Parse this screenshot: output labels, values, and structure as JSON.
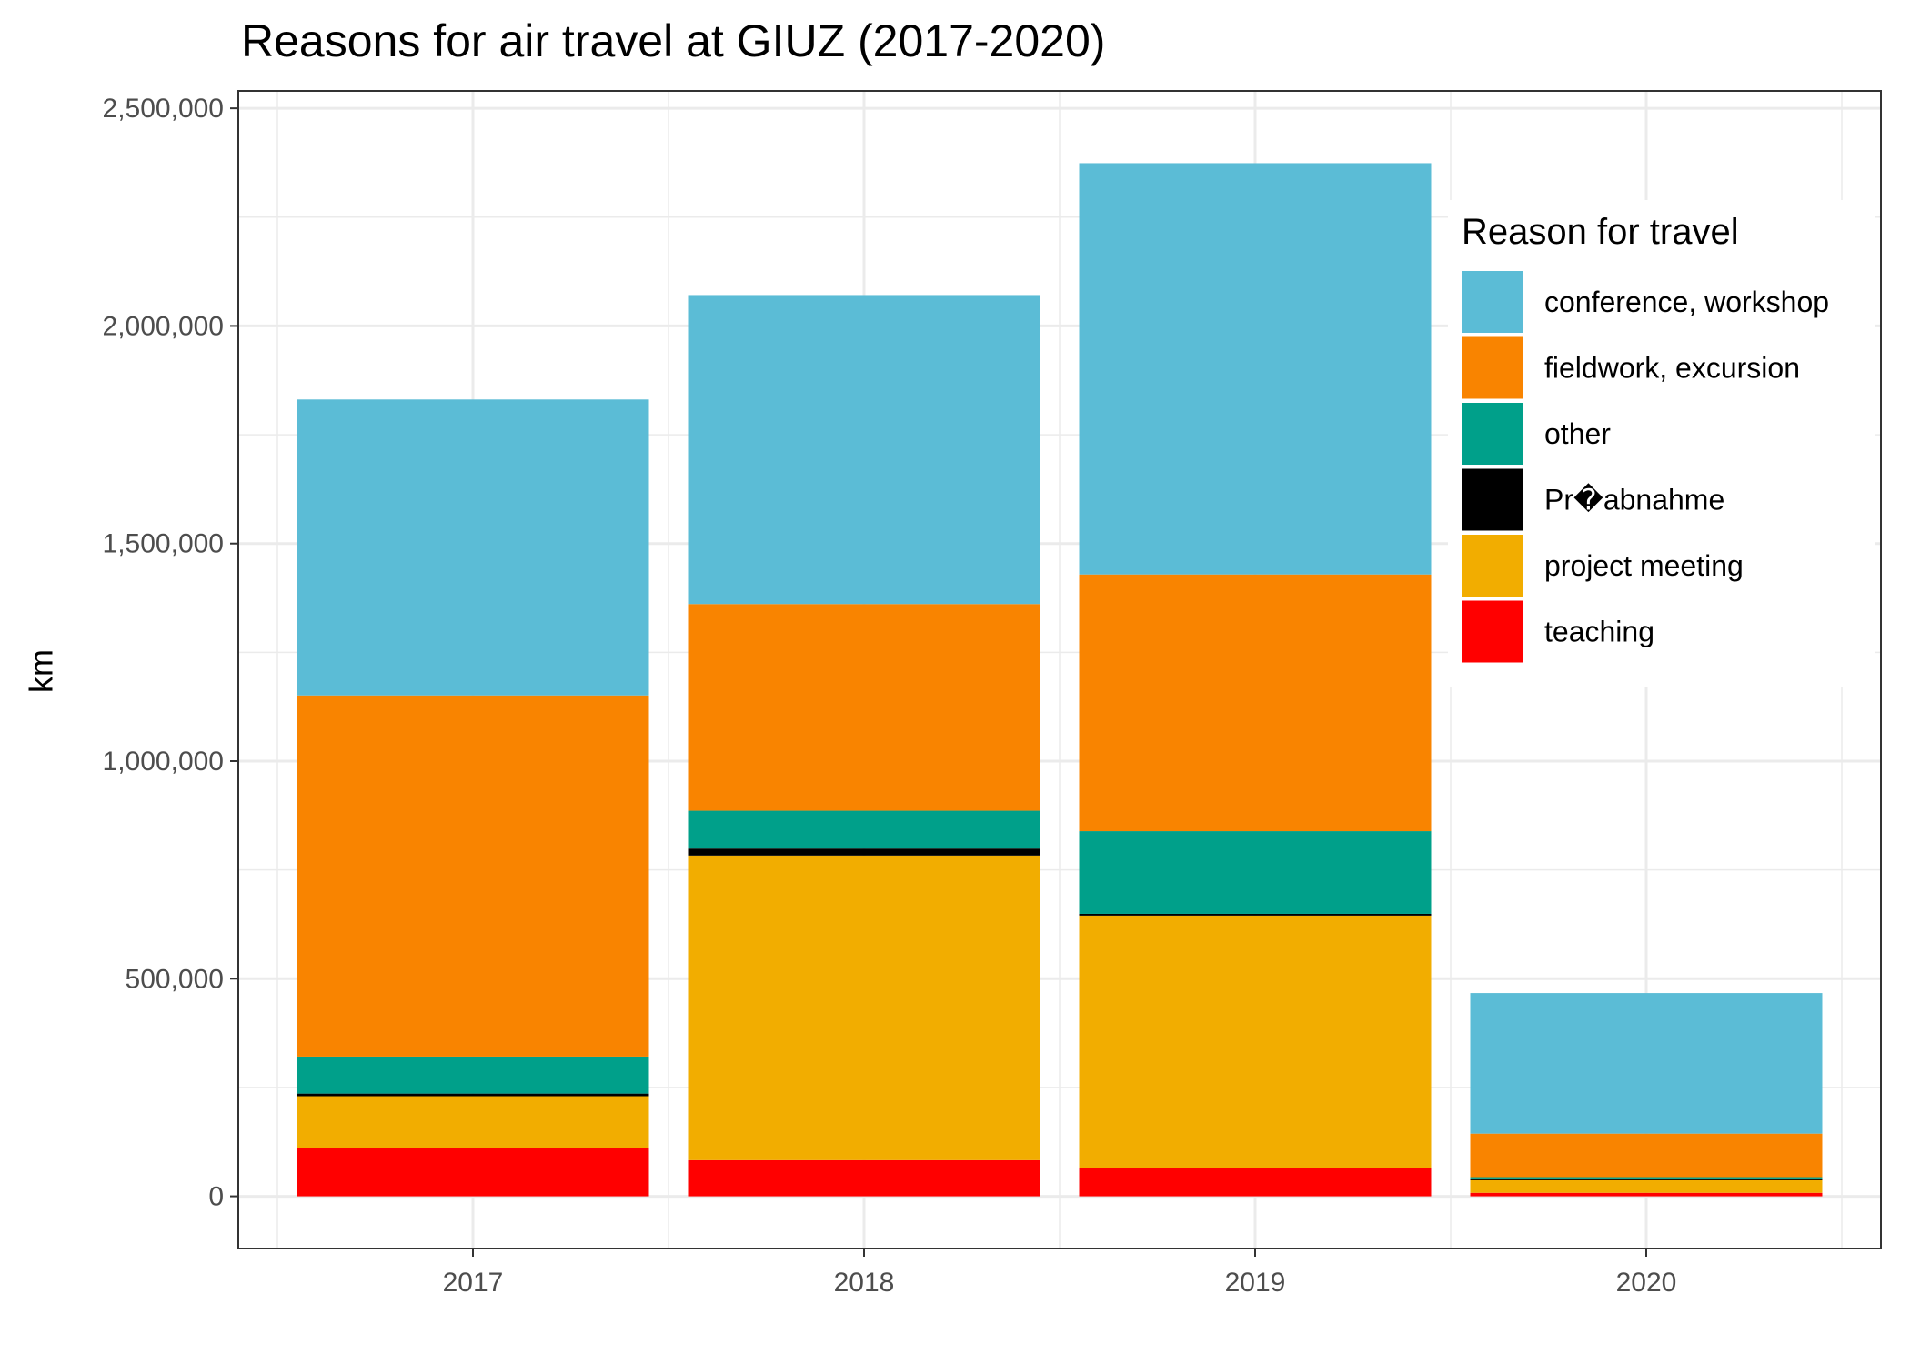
{
  "chart_data": {
    "type": "bar",
    "stacked": true,
    "title": "Reasons for air travel at GIUZ (2017-2020)",
    "xlabel": "",
    "ylabel": "km",
    "categories": [
      "2017",
      "2018",
      "2019",
      "2020"
    ],
    "ylim": [
      -120000,
      2540000
    ],
    "yticks": [
      0,
      500000,
      1000000,
      1500000,
      2000000,
      2500000
    ],
    "ytick_labels": [
      "0",
      "500,000",
      "1,000,000",
      "1,500,000",
      "2,000,000",
      "2,500,000"
    ],
    "grid": true,
    "legend_title": "Reason for travel",
    "legend_position": "right (inside plot, upper area)",
    "series": [
      {
        "name": "teaching",
        "color": "#FF0000",
        "values": [
          110000,
          83000,
          65000,
          8000
        ]
      },
      {
        "name": "project meeting",
        "color": "#F2AD00",
        "values": [
          120000,
          700000,
          580000,
          30000
        ]
      },
      {
        "name": "Pr�abnahme",
        "color": "#000000",
        "values": [
          6000,
          16000,
          4000,
          1000
        ]
      },
      {
        "name": "other",
        "color": "#00A08A",
        "values": [
          85000,
          87000,
          190000,
          5000
        ]
      },
      {
        "name": "fieldwork, excursion",
        "color": "#F98400",
        "values": [
          830000,
          475000,
          590000,
          100000
        ]
      },
      {
        "name": "conference, workshop",
        "color": "#5BBCD6",
        "values": [
          680000,
          710000,
          945000,
          323000
        ]
      }
    ],
    "legend_order": [
      "conference, workshop",
      "fieldwork, excursion",
      "other",
      "Pr�abnahme",
      "project meeting",
      "teaching"
    ]
  }
}
